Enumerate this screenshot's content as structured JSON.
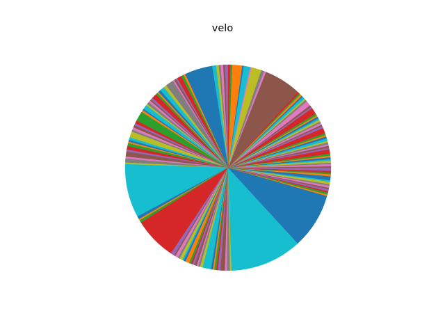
{
  "chart_data": {
    "type": "pie",
    "title": "velo",
    "start_angle": 90,
    "direction": "counterclockwise",
    "legend": "none",
    "colors": [
      "#1f77b4",
      "#ff7f0e",
      "#2ca02c",
      "#d62728",
      "#9467bd",
      "#8c564b",
      "#e377c2",
      "#7f7f7f",
      "#bcbd22",
      "#17becf"
    ],
    "slices": [
      {
        "value": 0.6,
        "color": "#9467bd"
      },
      {
        "value": 0.4,
        "color": "#8c564b"
      },
      {
        "value": 0.5,
        "color": "#e377c2"
      },
      {
        "value": 0.4,
        "color": "#7f7f7f"
      },
      {
        "value": 0.5,
        "color": "#bcbd22"
      },
      {
        "value": 0.8,
        "color": "#17becf"
      },
      {
        "value": 5.6,
        "color": "#1f77b4"
      },
      {
        "value": 0.4,
        "color": "#ff7f0e"
      },
      {
        "value": 0.5,
        "color": "#2ca02c"
      },
      {
        "value": 0.9,
        "color": "#d62728"
      },
      {
        "value": 0.3,
        "color": "#9467bd"
      },
      {
        "value": 0.4,
        "color": "#8c564b"
      },
      {
        "value": 0.3,
        "color": "#e377c2"
      },
      {
        "value": 1.6,
        "color": "#7f7f7f"
      },
      {
        "value": 0.6,
        "color": "#bcbd22"
      },
      {
        "value": 0.9,
        "color": "#17becf"
      },
      {
        "value": 0.5,
        "color": "#1f77b4"
      },
      {
        "value": 0.3,
        "color": "#ff7f0e"
      },
      {
        "value": 0.4,
        "color": "#2ca02c"
      },
      {
        "value": 1.0,
        "color": "#d62728"
      },
      {
        "value": 0.4,
        "color": "#9467bd"
      },
      {
        "value": 0.3,
        "color": "#8c564b"
      },
      {
        "value": 0.4,
        "color": "#e377c2"
      },
      {
        "value": 0.5,
        "color": "#7f7f7f"
      },
      {
        "value": 0.3,
        "color": "#bcbd22"
      },
      {
        "value": 0.9,
        "color": "#17becf"
      },
      {
        "value": 0.3,
        "color": "#1f77b4"
      },
      {
        "value": 0.4,
        "color": "#ff7f0e"
      },
      {
        "value": 2.0,
        "color": "#2ca02c"
      },
      {
        "value": 0.6,
        "color": "#d62728"
      },
      {
        "value": 0.4,
        "color": "#9467bd"
      },
      {
        "value": 0.5,
        "color": "#8c564b"
      },
      {
        "value": 0.5,
        "color": "#e377c2"
      },
      {
        "value": 0.4,
        "color": "#7f7f7f"
      },
      {
        "value": 1.2,
        "color": "#bcbd22"
      },
      {
        "value": 0.5,
        "color": "#17becf"
      },
      {
        "value": 0.4,
        "color": "#1f77b4"
      },
      {
        "value": 0.3,
        "color": "#ff7f0e"
      },
      {
        "value": 0.6,
        "color": "#2ca02c"
      },
      {
        "value": 0.7,
        "color": "#d62728"
      },
      {
        "value": 0.4,
        "color": "#9467bd"
      },
      {
        "value": 1.0,
        "color": "#8c564b"
      },
      {
        "value": 0.4,
        "color": "#e377c2"
      },
      {
        "value": 0.8,
        "color": "#7f7f7f"
      },
      {
        "value": 0.3,
        "color": "#bcbd22"
      },
      {
        "value": 10.8,
        "color": "#17becf"
      },
      {
        "value": 0.6,
        "color": "#1f77b4"
      },
      {
        "value": 0.3,
        "color": "#ff7f0e"
      },
      {
        "value": 0.5,
        "color": "#2ca02c"
      },
      {
        "value": 8.6,
        "color": "#d62728"
      },
      {
        "value": 0.7,
        "color": "#9467bd"
      },
      {
        "value": 0.3,
        "color": "#8c564b"
      },
      {
        "value": 0.6,
        "color": "#e377c2"
      },
      {
        "value": 0.4,
        "color": "#7f7f7f"
      },
      {
        "value": 0.6,
        "color": "#bcbd22"
      },
      {
        "value": 0.3,
        "color": "#17becf"
      },
      {
        "value": 0.4,
        "color": "#1f77b4"
      },
      {
        "value": 0.8,
        "color": "#ff7f0e"
      },
      {
        "value": 0.4,
        "color": "#2ca02c"
      },
      {
        "value": 0.3,
        "color": "#d62728"
      },
      {
        "value": 0.4,
        "color": "#9467bd"
      },
      {
        "value": 0.5,
        "color": "#8c564b"
      },
      {
        "value": 0.3,
        "color": "#e377c2"
      },
      {
        "value": 0.4,
        "color": "#7f7f7f"
      },
      {
        "value": 0.5,
        "color": "#bcbd22"
      },
      {
        "value": 1.7,
        "color": "#17becf"
      },
      {
        "value": 0.4,
        "color": "#1f77b4"
      },
      {
        "value": 0.3,
        "color": "#ff7f0e"
      },
      {
        "value": 0.4,
        "color": "#2ca02c"
      },
      {
        "value": 0.3,
        "color": "#d62728"
      },
      {
        "value": 0.5,
        "color": "#9467bd"
      },
      {
        "value": 0.9,
        "color": "#8c564b"
      },
      {
        "value": 0.4,
        "color": "#e377c2"
      },
      {
        "value": 0.6,
        "color": "#7f7f7f"
      },
      {
        "value": 0.3,
        "color": "#bcbd22"
      },
      {
        "value": 14.5,
        "color": "#17becf"
      },
      {
        "value": 11.2,
        "color": "#1f77b4"
      },
      {
        "value": 0.3,
        "color": "#ff7f0e"
      },
      {
        "value": 0.4,
        "color": "#2ca02c"
      },
      {
        "value": 0.3,
        "color": "#d62728"
      },
      {
        "value": 0.4,
        "color": "#9467bd"
      },
      {
        "value": 0.3,
        "color": "#8c564b"
      },
      {
        "value": 0.4,
        "color": "#e377c2"
      },
      {
        "value": 0.3,
        "color": "#7f7f7f"
      },
      {
        "value": 0.5,
        "color": "#bcbd22"
      },
      {
        "value": 0.3,
        "color": "#17becf"
      },
      {
        "value": 0.8,
        "color": "#1f77b4"
      },
      {
        "value": 0.4,
        "color": "#ff7f0e"
      },
      {
        "value": 0.3,
        "color": "#2ca02c"
      },
      {
        "value": 0.4,
        "color": "#d62728"
      },
      {
        "value": 0.6,
        "color": "#9467bd"
      },
      {
        "value": 0.3,
        "color": "#8c564b"
      },
      {
        "value": 0.4,
        "color": "#e377c2"
      },
      {
        "value": 0.3,
        "color": "#7f7f7f"
      },
      {
        "value": 0.4,
        "color": "#bcbd22"
      },
      {
        "value": 0.3,
        "color": "#17becf"
      },
      {
        "value": 0.4,
        "color": "#1f77b4"
      },
      {
        "value": 0.3,
        "color": "#ff7f0e"
      },
      {
        "value": 0.4,
        "color": "#2ca02c"
      },
      {
        "value": 0.9,
        "color": "#d62728"
      },
      {
        "value": 0.3,
        "color": "#9467bd"
      },
      {
        "value": 0.4,
        "color": "#8c564b"
      },
      {
        "value": 0.3,
        "color": "#e377c2"
      },
      {
        "value": 0.4,
        "color": "#7f7f7f"
      },
      {
        "value": 0.3,
        "color": "#bcbd22"
      },
      {
        "value": 0.5,
        "color": "#17becf"
      },
      {
        "value": 0.4,
        "color": "#1f77b4"
      },
      {
        "value": 0.3,
        "color": "#ff7f0e"
      },
      {
        "value": 0.4,
        "color": "#2ca02c"
      },
      {
        "value": 1.1,
        "color": "#d62728"
      },
      {
        "value": 0.4,
        "color": "#9467bd"
      },
      {
        "value": 0.3,
        "color": "#8c564b"
      },
      {
        "value": 0.4,
        "color": "#e377c2"
      },
      {
        "value": 0.3,
        "color": "#7f7f7f"
      },
      {
        "value": 0.4,
        "color": "#bcbd22"
      },
      {
        "value": 0.3,
        "color": "#17becf"
      },
      {
        "value": 0.4,
        "color": "#1f77b4"
      },
      {
        "value": 0.3,
        "color": "#ff7f0e"
      },
      {
        "value": 0.4,
        "color": "#2ca02c"
      },
      {
        "value": 1.3,
        "color": "#d62728"
      },
      {
        "value": 0.3,
        "color": "#9467bd"
      },
      {
        "value": 0.4,
        "color": "#8c564b"
      },
      {
        "value": 1.0,
        "color": "#e377c2"
      },
      {
        "value": 0.4,
        "color": "#7f7f7f"
      },
      {
        "value": 0.3,
        "color": "#bcbd22"
      },
      {
        "value": 0.5,
        "color": "#17becf"
      },
      {
        "value": 0.3,
        "color": "#1f77b4"
      },
      {
        "value": 0.4,
        "color": "#ff7f0e"
      },
      {
        "value": 0.3,
        "color": "#2ca02c"
      },
      {
        "value": 0.4,
        "color": "#d62728"
      },
      {
        "value": 7.5,
        "color": "#8c564b"
      },
      {
        "value": 0.4,
        "color": "#e377c2"
      },
      {
        "value": 0.6,
        "color": "#7f7f7f"
      },
      {
        "value": 2.0,
        "color": "#bcbd22"
      },
      {
        "value": 0.3,
        "color": "#e377c2"
      },
      {
        "value": 1.3,
        "color": "#17becf"
      },
      {
        "value": 0.3,
        "color": "#1f77b4"
      },
      {
        "value": 2.0,
        "color": "#ff7f0e"
      },
      {
        "value": 0.4,
        "color": "#2ca02c"
      },
      {
        "value": 0.4,
        "color": "#d62728"
      }
    ]
  }
}
